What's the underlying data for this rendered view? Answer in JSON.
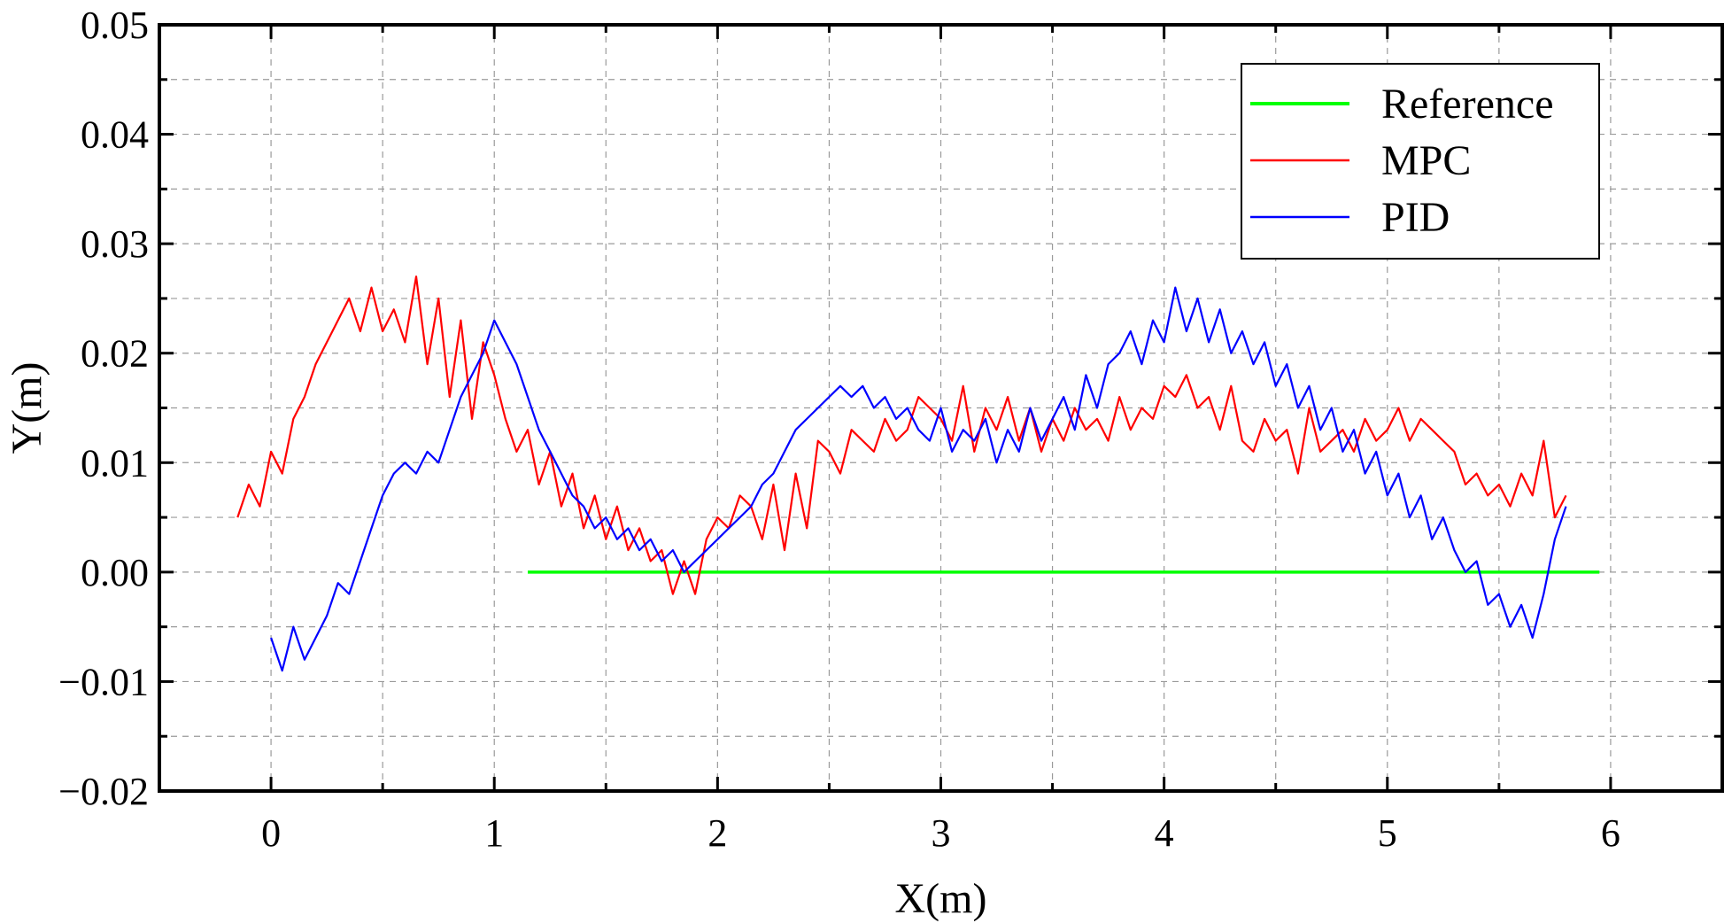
{
  "chart_data": {
    "type": "line",
    "xlabel": "X(m)",
    "ylabel": "Y(m)",
    "xlim": [
      -0.5,
      6.5
    ],
    "ylim": [
      -0.02,
      0.05
    ],
    "x_ticks": [
      0,
      1,
      2,
      3,
      4,
      5,
      6
    ],
    "x_tick_labels": [
      "0",
      "1",
      "2",
      "3",
      "4",
      "5",
      "6"
    ],
    "y_ticks": [
      -0.02,
      -0.01,
      0.0,
      0.01,
      0.02,
      0.03,
      0.04,
      0.05
    ],
    "y_tick_labels": [
      "−0.02",
      "−0.01",
      "0.00",
      "0.01",
      "0.02",
      "0.03",
      "0.04",
      "0.05"
    ],
    "grid": true,
    "legend_position": "top-right",
    "series": [
      {
        "name": "Reference",
        "color": "#00ff00",
        "x": [
          1.15,
          5.95
        ],
        "y": [
          0.0,
          0.0
        ]
      },
      {
        "name": "MPC",
        "color": "#ff0000",
        "x": [
          -0.15,
          -0.1,
          -0.05,
          0.0,
          0.05,
          0.1,
          0.15,
          0.2,
          0.25,
          0.3,
          0.35,
          0.4,
          0.45,
          0.5,
          0.55,
          0.6,
          0.65,
          0.7,
          0.75,
          0.8,
          0.85,
          0.9,
          0.95,
          1.0,
          1.05,
          1.1,
          1.15,
          1.2,
          1.25,
          1.3,
          1.35,
          1.4,
          1.45,
          1.5,
          1.55,
          1.6,
          1.65,
          1.7,
          1.75,
          1.8,
          1.85,
          1.9,
          1.95,
          2.0,
          2.05,
          2.1,
          2.15,
          2.2,
          2.25,
          2.3,
          2.35,
          2.4,
          2.45,
          2.5,
          2.55,
          2.6,
          2.65,
          2.7,
          2.75,
          2.8,
          2.85,
          2.9,
          2.95,
          3.0,
          3.05,
          3.1,
          3.15,
          3.2,
          3.25,
          3.3,
          3.35,
          3.4,
          3.45,
          3.5,
          3.55,
          3.6,
          3.65,
          3.7,
          3.75,
          3.8,
          3.85,
          3.9,
          3.95,
          4.0,
          4.05,
          4.1,
          4.15,
          4.2,
          4.25,
          4.3,
          4.35,
          4.4,
          4.45,
          4.5,
          4.55,
          4.6,
          4.65,
          4.7,
          4.75,
          4.8,
          4.85,
          4.9,
          4.95,
          5.0,
          5.05,
          5.1,
          5.15,
          5.2,
          5.25,
          5.3,
          5.35,
          5.4,
          5.45,
          5.5,
          5.55,
          5.6,
          5.65,
          5.7,
          5.75,
          5.8
        ],
        "y": [
          0.005,
          0.008,
          0.006,
          0.011,
          0.009,
          0.014,
          0.016,
          0.019,
          0.021,
          0.023,
          0.025,
          0.022,
          0.026,
          0.022,
          0.024,
          0.021,
          0.027,
          0.019,
          0.025,
          0.016,
          0.023,
          0.014,
          0.021,
          0.018,
          0.014,
          0.011,
          0.013,
          0.008,
          0.011,
          0.006,
          0.009,
          0.004,
          0.007,
          0.003,
          0.006,
          0.002,
          0.004,
          0.001,
          0.002,
          -0.002,
          0.001,
          -0.002,
          0.003,
          0.005,
          0.004,
          0.007,
          0.006,
          0.003,
          0.008,
          0.002,
          0.009,
          0.004,
          0.012,
          0.011,
          0.009,
          0.013,
          0.012,
          0.011,
          0.014,
          0.012,
          0.013,
          0.016,
          0.015,
          0.014,
          0.012,
          0.017,
          0.011,
          0.015,
          0.013,
          0.016,
          0.012,
          0.015,
          0.011,
          0.014,
          0.012,
          0.015,
          0.013,
          0.014,
          0.012,
          0.016,
          0.013,
          0.015,
          0.014,
          0.017,
          0.016,
          0.018,
          0.015,
          0.016,
          0.013,
          0.017,
          0.012,
          0.011,
          0.014,
          0.012,
          0.013,
          0.009,
          0.015,
          0.011,
          0.012,
          0.013,
          0.011,
          0.014,
          0.012,
          0.013,
          0.015,
          0.012,
          0.014,
          0.013,
          0.012,
          0.011,
          0.008,
          0.009,
          0.007,
          0.008,
          0.006,
          0.009,
          0.007,
          0.012,
          0.005,
          0.007
        ]
      },
      {
        "name": "PID",
        "color": "#0000ff",
        "x": [
          0.0,
          0.05,
          0.1,
          0.15,
          0.2,
          0.25,
          0.3,
          0.35,
          0.4,
          0.45,
          0.5,
          0.55,
          0.6,
          0.65,
          0.7,
          0.75,
          0.8,
          0.85,
          0.9,
          0.95,
          1.0,
          1.05,
          1.1,
          1.15,
          1.2,
          1.25,
          1.3,
          1.35,
          1.4,
          1.45,
          1.5,
          1.55,
          1.6,
          1.65,
          1.7,
          1.75,
          1.8,
          1.85,
          1.9,
          1.95,
          2.0,
          2.05,
          2.1,
          2.15,
          2.2,
          2.25,
          2.3,
          2.35,
          2.4,
          2.45,
          2.5,
          2.55,
          2.6,
          2.65,
          2.7,
          2.75,
          2.8,
          2.85,
          2.9,
          2.95,
          3.0,
          3.05,
          3.1,
          3.15,
          3.2,
          3.25,
          3.3,
          3.35,
          3.4,
          3.45,
          3.5,
          3.55,
          3.6,
          3.65,
          3.7,
          3.75,
          3.8,
          3.85,
          3.9,
          3.95,
          4.0,
          4.05,
          4.1,
          4.15,
          4.2,
          4.25,
          4.3,
          4.35,
          4.4,
          4.45,
          4.5,
          4.55,
          4.6,
          4.65,
          4.7,
          4.75,
          4.8,
          4.85,
          4.9,
          4.95,
          5.0,
          5.05,
          5.1,
          5.15,
          5.2,
          5.25,
          5.3,
          5.35,
          5.4,
          5.45,
          5.5,
          5.55,
          5.6,
          5.65,
          5.7,
          5.75,
          5.8
        ],
        "y": [
          -0.006,
          -0.009,
          -0.005,
          -0.008,
          -0.006,
          -0.004,
          -0.001,
          -0.002,
          0.001,
          0.004,
          0.007,
          0.009,
          0.01,
          0.009,
          0.011,
          0.01,
          0.013,
          0.016,
          0.018,
          0.02,
          0.023,
          0.021,
          0.019,
          0.016,
          0.013,
          0.011,
          0.009,
          0.007,
          0.006,
          0.004,
          0.005,
          0.003,
          0.004,
          0.002,
          0.003,
          0.001,
          0.002,
          0.0,
          0.001,
          0.002,
          0.003,
          0.004,
          0.005,
          0.006,
          0.008,
          0.009,
          0.011,
          0.013,
          0.014,
          0.015,
          0.016,
          0.017,
          0.016,
          0.017,
          0.015,
          0.016,
          0.014,
          0.015,
          0.013,
          0.012,
          0.015,
          0.011,
          0.013,
          0.012,
          0.014,
          0.01,
          0.013,
          0.011,
          0.015,
          0.012,
          0.014,
          0.016,
          0.013,
          0.018,
          0.015,
          0.019,
          0.02,
          0.022,
          0.019,
          0.023,
          0.021,
          0.026,
          0.022,
          0.025,
          0.021,
          0.024,
          0.02,
          0.022,
          0.019,
          0.021,
          0.017,
          0.019,
          0.015,
          0.017,
          0.013,
          0.015,
          0.011,
          0.013,
          0.009,
          0.011,
          0.007,
          0.009,
          0.005,
          0.007,
          0.003,
          0.005,
          0.002,
          0.0,
          0.001,
          -0.003,
          -0.002,
          -0.005,
          -0.003,
          -0.006,
          -0.002,
          0.003,
          0.006
        ]
      }
    ]
  }
}
